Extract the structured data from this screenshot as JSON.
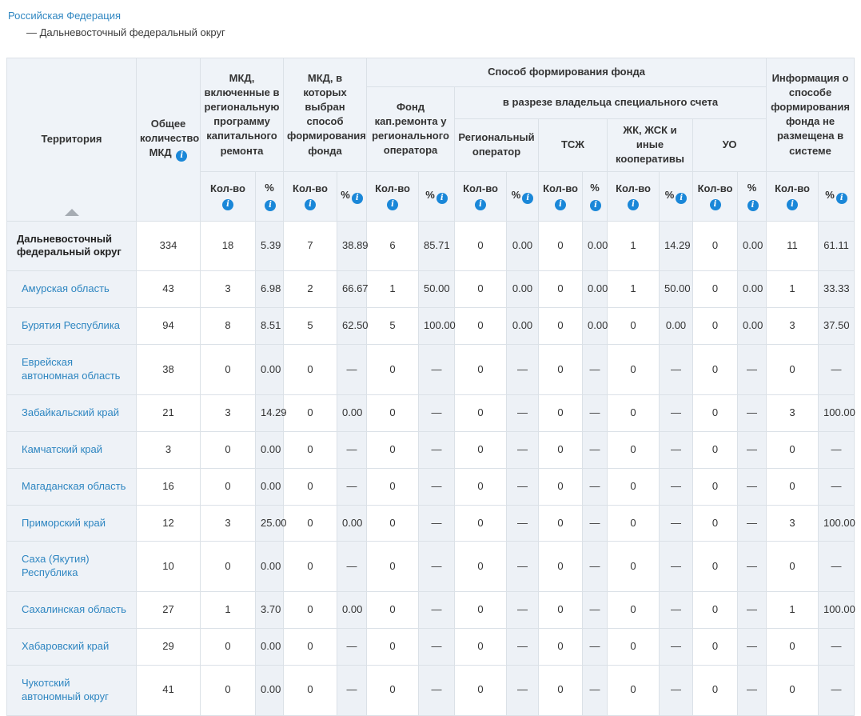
{
  "breadcrumb": {
    "root_label": "Российская Федерация",
    "current_label": "— Дальневосточный федеральный округ"
  },
  "icons": {
    "info_glyph": "i"
  },
  "colors": {
    "link_blue": "#2e86c1",
    "info_icon_blue": "#1a87d8",
    "header_bg": "#eff3f8",
    "tint_bg": "#edf1f6",
    "border": "#dbe1e7"
  },
  "table": {
    "headers": {
      "territory": "Территория",
      "total_mkd": "Общее количество МКД",
      "group_regional_program": "МКД, включенные в региональную программу капитального ремонта",
      "group_method_chosen": "МКД, в которых выбран способ формирования фонда",
      "group_fund_method": "Способ формирования фонда",
      "group_fund_regional_operator": "Фонд кап.ремонта у регионального оператора",
      "group_special_account": "в разрезе владельца специального счета",
      "sub_regional_operator": "Региональный оператор",
      "sub_tsj": "ТСЖ",
      "sub_jk_jsk": "ЖК, ЖСК и иные кооперативы",
      "sub_uo": "УО",
      "group_no_info": "Информация о способе формирования фонда не размещена в системе",
      "count_label": "Кол-во",
      "percent_label": "%"
    },
    "rows": [
      {
        "territory": "Дальневосточный федеральный округ",
        "type": "total",
        "values": [
          "334",
          "18",
          "5.39",
          "7",
          "38.89",
          "6",
          "85.71",
          "0",
          "0.00",
          "0",
          "0.00",
          "1",
          "14.29",
          "0",
          "0.00",
          "11",
          "61.11"
        ]
      },
      {
        "territory": "Амурская область",
        "type": "region",
        "values": [
          "43",
          "3",
          "6.98",
          "2",
          "66.67",
          "1",
          "50.00",
          "0",
          "0.00",
          "0",
          "0.00",
          "1",
          "50.00",
          "0",
          "0.00",
          "1",
          "33.33"
        ]
      },
      {
        "territory": "Бурятия Республика",
        "type": "region",
        "values": [
          "94",
          "8",
          "8.51",
          "5",
          "62.50",
          "5",
          "100.00",
          "0",
          "0.00",
          "0",
          "0.00",
          "0",
          "0.00",
          "0",
          "0.00",
          "3",
          "37.50"
        ]
      },
      {
        "territory": "Еврейская автономная область",
        "type": "region",
        "values": [
          "38",
          "0",
          "0.00",
          "0",
          "—",
          "0",
          "—",
          "0",
          "—",
          "0",
          "—",
          "0",
          "—",
          "0",
          "—",
          "0",
          "—"
        ]
      },
      {
        "territory": "Забайкальский край",
        "type": "region",
        "values": [
          "21",
          "3",
          "14.29",
          "0",
          "0.00",
          "0",
          "—",
          "0",
          "—",
          "0",
          "—",
          "0",
          "—",
          "0",
          "—",
          "3",
          "100.00"
        ]
      },
      {
        "territory": "Камчатский край",
        "type": "region",
        "values": [
          "3",
          "0",
          "0.00",
          "0",
          "—",
          "0",
          "—",
          "0",
          "—",
          "0",
          "—",
          "0",
          "—",
          "0",
          "—",
          "0",
          "—"
        ]
      },
      {
        "territory": "Магаданская область",
        "type": "region",
        "values": [
          "16",
          "0",
          "0.00",
          "0",
          "—",
          "0",
          "—",
          "0",
          "—",
          "0",
          "—",
          "0",
          "—",
          "0",
          "—",
          "0",
          "—"
        ]
      },
      {
        "territory": "Приморский край",
        "type": "region",
        "values": [
          "12",
          "3",
          "25.00",
          "0",
          "0.00",
          "0",
          "—",
          "0",
          "—",
          "0",
          "—",
          "0",
          "—",
          "0",
          "—",
          "3",
          "100.00"
        ]
      },
      {
        "territory": "Саха (Якутия) Республика",
        "type": "region",
        "values": [
          "10",
          "0",
          "0.00",
          "0",
          "—",
          "0",
          "—",
          "0",
          "—",
          "0",
          "—",
          "0",
          "—",
          "0",
          "—",
          "0",
          "—"
        ]
      },
      {
        "territory": "Сахалинская область",
        "type": "region",
        "values": [
          "27",
          "1",
          "3.70",
          "0",
          "0.00",
          "0",
          "—",
          "0",
          "—",
          "0",
          "—",
          "0",
          "—",
          "0",
          "—",
          "1",
          "100.00"
        ]
      },
      {
        "territory": "Хабаровский край",
        "type": "region",
        "values": [
          "29",
          "0",
          "0.00",
          "0",
          "—",
          "0",
          "—",
          "0",
          "—",
          "0",
          "—",
          "0",
          "—",
          "0",
          "—",
          "0",
          "—"
        ]
      },
      {
        "territory": "Чукотский автономный округ",
        "type": "region",
        "values": [
          "41",
          "0",
          "0.00",
          "0",
          "—",
          "0",
          "—",
          "0",
          "—",
          "0",
          "—",
          "0",
          "—",
          "0",
          "—",
          "0",
          "—"
        ]
      }
    ]
  }
}
